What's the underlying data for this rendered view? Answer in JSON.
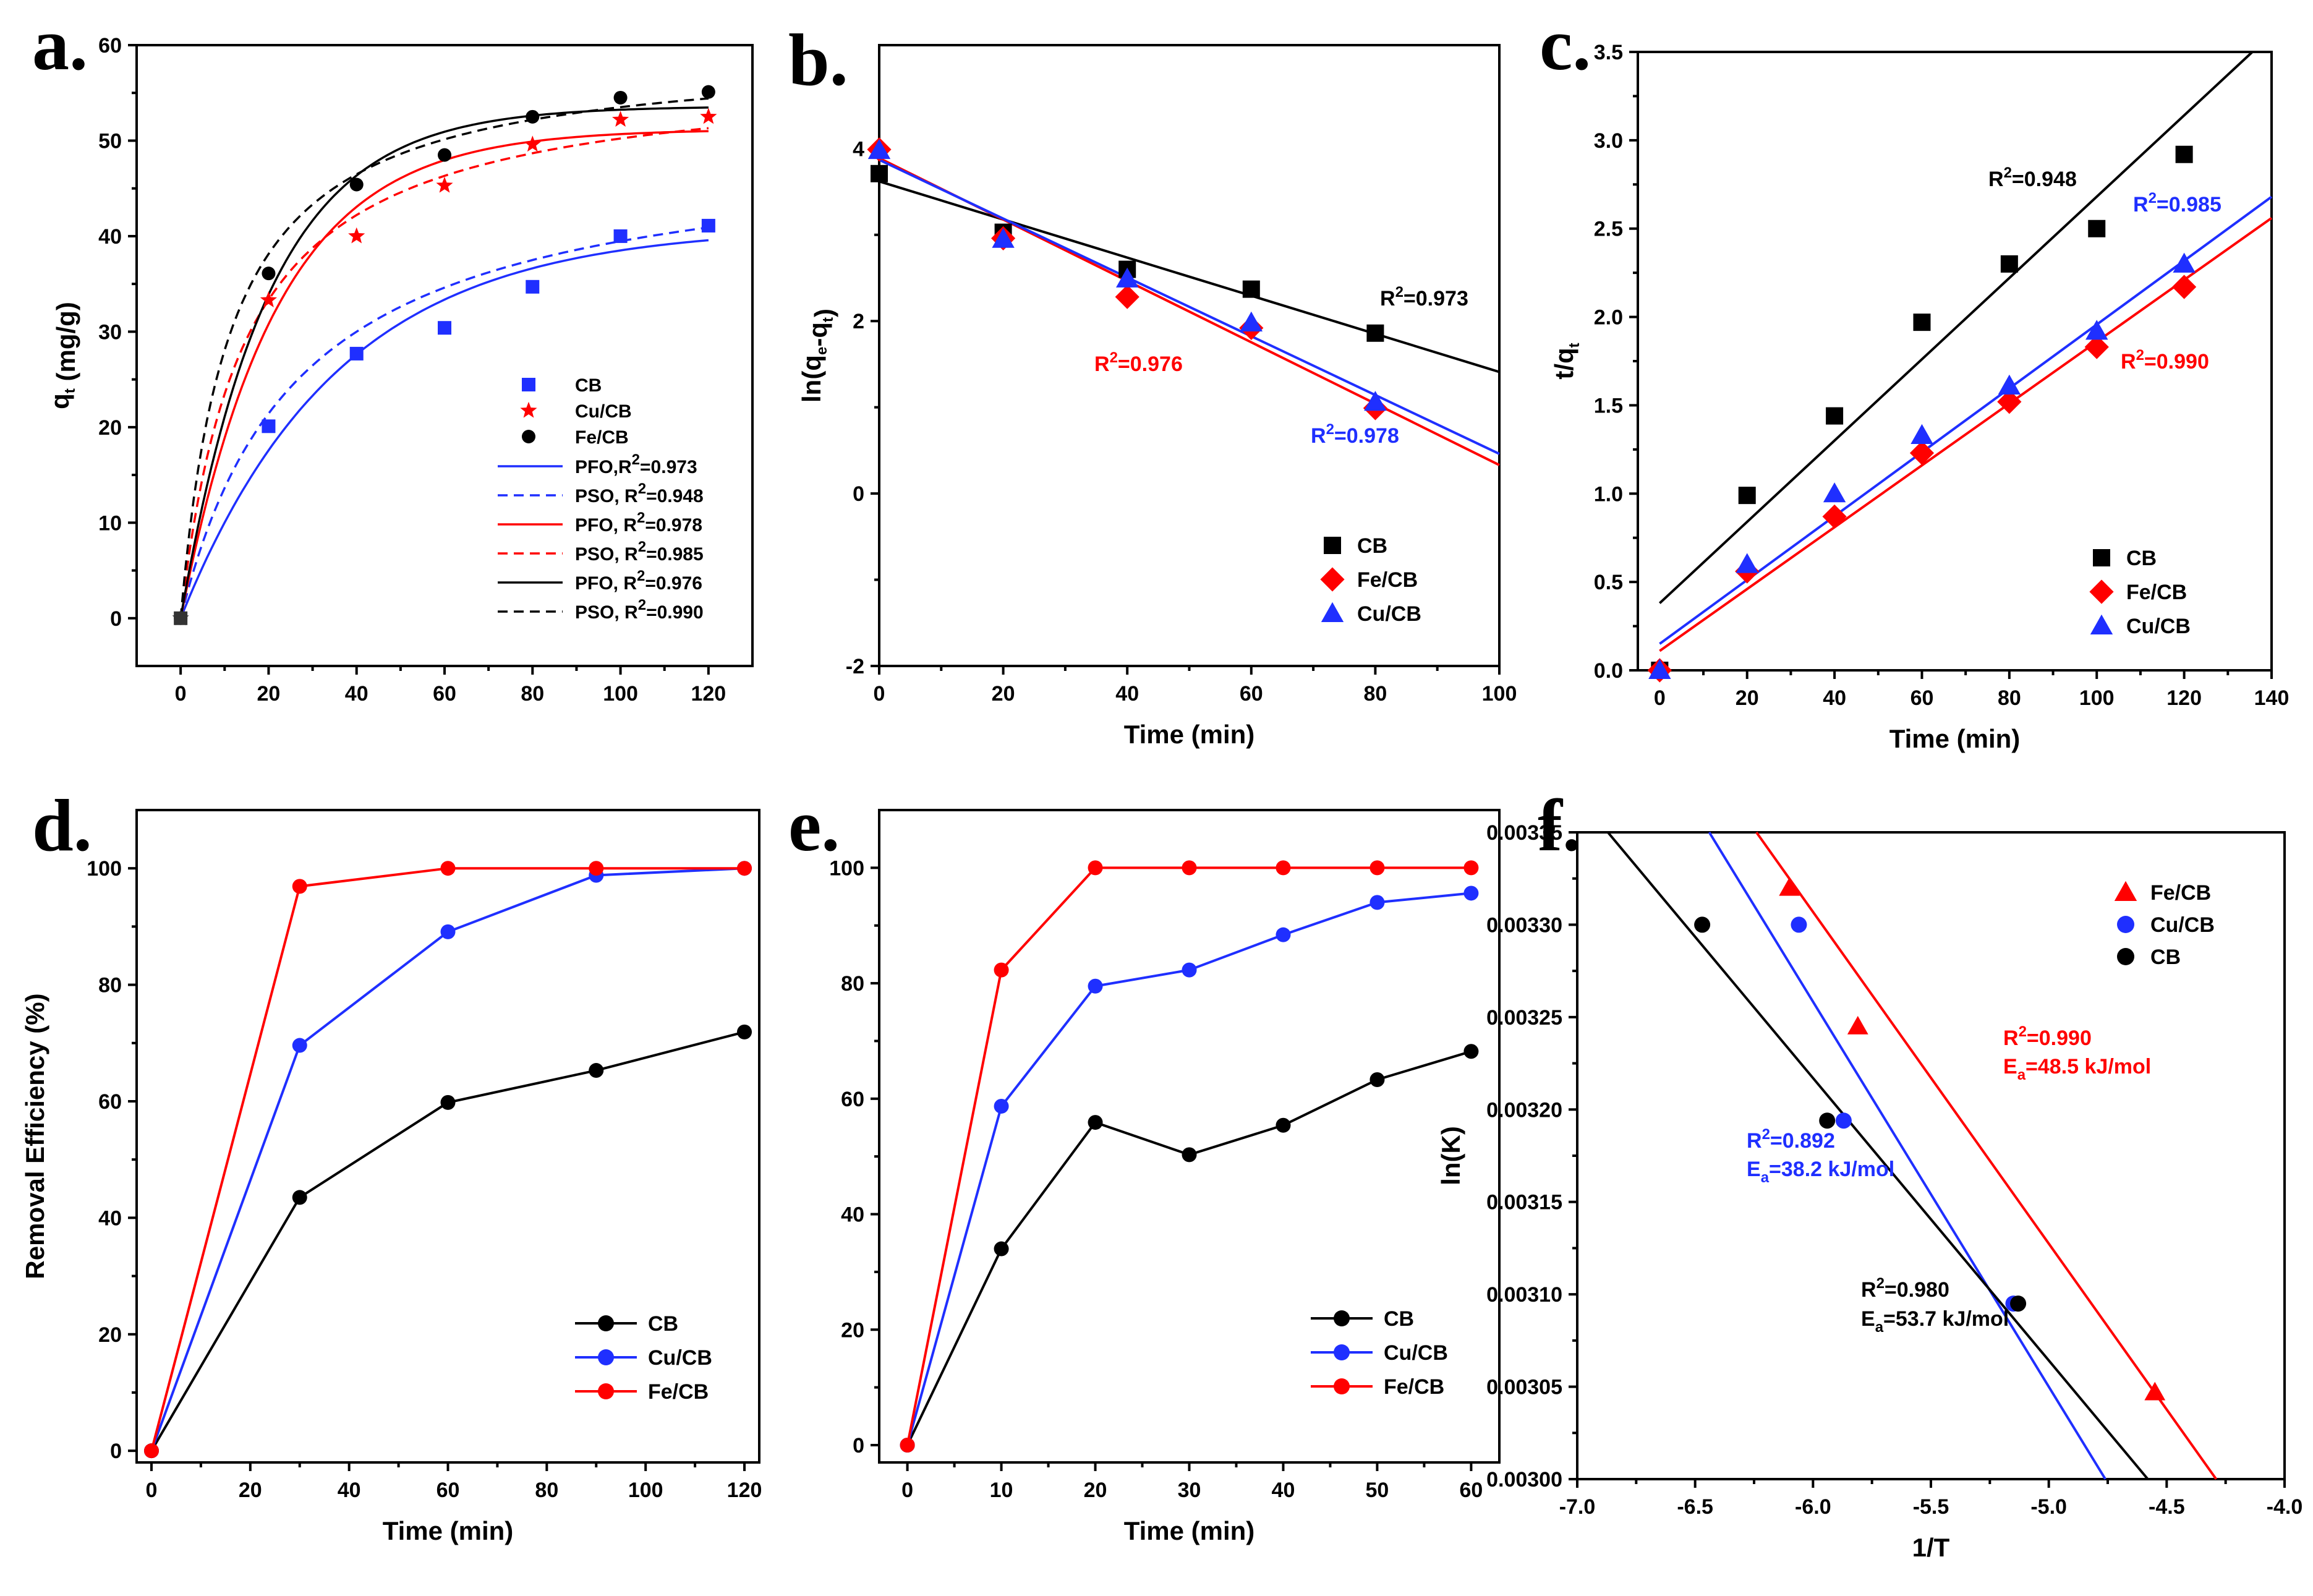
{
  "chart_data": [
    {
      "panel": "a.",
      "type": "scatter",
      "xlabel": "",
      "ylabel": "q_t (mg/g)",
      "xlim": [
        -10,
        130
      ],
      "ylim": [
        -5,
        60
      ],
      "xticks": [
        0,
        20,
        40,
        60,
        80,
        100,
        120
      ],
      "yticks": [
        0,
        10,
        20,
        30,
        40,
        50,
        60
      ],
      "series": [
        {
          "name": "CB",
          "color": "#1f2fff",
          "marker": "square",
          "x": [
            0,
            20,
            40,
            60,
            80,
            100,
            120
          ],
          "y": [
            0,
            20.1,
            27.7,
            30.4,
            34.7,
            40.0,
            41.1
          ]
        },
        {
          "name": "Cu/CB",
          "color": "#ff0000",
          "marker": "star",
          "x": [
            0,
            20,
            40,
            60,
            80,
            100,
            120
          ],
          "y": [
            0,
            33.3,
            40.0,
            45.3,
            49.6,
            52.2,
            52.5
          ]
        },
        {
          "name": "Fe/CB",
          "color": "#000000",
          "marker": "circle",
          "x": [
            0,
            20,
            40,
            60,
            80,
            100,
            120
          ],
          "y": [
            0,
            36.1,
            45.4,
            48.5,
            52.5,
            54.5,
            55.1
          ]
        }
      ],
      "fits": [
        {
          "label": "PFO,R²=0.973",
          "color": "#1f2fff",
          "dash": false,
          "model": "pfo",
          "qe": 41.0,
          "k": 0.028
        },
        {
          "label": "PSO, R²=0.948",
          "color": "#1f2fff",
          "dash": true,
          "model": "pso",
          "qe": 50.0,
          "k": 0.00075
        },
        {
          "label": "PFO, R²=0.978",
          "color": "#ff0000",
          "dash": false,
          "model": "pfo",
          "qe": 51.2,
          "k": 0.046
        },
        {
          "label": "PSO, R²=0.985",
          "color": "#ff0000",
          "dash": true,
          "model": "pso",
          "qe": 57.5,
          "k": 0.0012
        },
        {
          "label": "PFO, R²=0.976",
          "color": "#000000",
          "dash": false,
          "model": "pfo",
          "qe": 53.6,
          "k": 0.05
        },
        {
          "label": "PSO, R²=0.990",
          "color": "#000000",
          "dash": true,
          "model": "pso",
          "qe": 59.5,
          "k": 0.0015
        }
      ]
    },
    {
      "panel": "b.",
      "type": "scatter",
      "xlabel": "Time (min)",
      "ylabel": "ln(q_e-q_t)",
      "xlim": [
        0,
        100
      ],
      "ylim": [
        -2,
        5.2
      ],
      "xticks": [
        0,
        20,
        40,
        60,
        80,
        100
      ],
      "yticks": [
        -2,
        0,
        2,
        4
      ],
      "series": [
        {
          "name": "CB",
          "color": "#000000",
          "marker": "square",
          "x": [
            0,
            20,
            40,
            60,
            80
          ],
          "y": [
            3.71,
            3.03,
            2.6,
            2.37,
            1.86
          ]
        },
        {
          "name": "Fe/CB",
          "color": "#ff0000",
          "marker": "diamond",
          "x": [
            0,
            20,
            40,
            60,
            80
          ],
          "y": [
            3.99,
            2.96,
            2.28,
            1.92,
            0.99
          ]
        },
        {
          "name": "Cu/CB",
          "color": "#1f2fff",
          "marker": "triangle",
          "x": [
            0,
            20,
            40,
            60,
            80
          ],
          "y": [
            3.98,
            2.95,
            2.49,
            1.98,
            1.06
          ]
        }
      ],
      "fits": [
        {
          "color": "#000000",
          "x": [
            0,
            100
          ],
          "y": [
            3.62,
            1.41
          ]
        },
        {
          "color": "#ff0000",
          "x": [
            0,
            100
          ],
          "y": [
            3.89,
            0.33
          ]
        },
        {
          "color": "#1f2fff",
          "x": [
            0,
            100
          ],
          "y": [
            3.87,
            0.46
          ]
        }
      ]
    },
    {
      "panel": "c.",
      "type": "scatter",
      "xlabel": "Time (min)",
      "ylabel": "t/q_t",
      "xlim": [
        -5,
        140
      ],
      "ylim": [
        0,
        3.5
      ],
      "xticks": [
        0,
        20,
        40,
        60,
        80,
        100,
        120,
        140
      ],
      "yticks": [
        0.0,
        0.5,
        1.0,
        1.5,
        2.0,
        2.5,
        3.0,
        3.5
      ],
      "series": [
        {
          "name": "CB",
          "color": "#000000",
          "marker": "square",
          "x": [
            0,
            20,
            40,
            60,
            80,
            100,
            120
          ],
          "y": [
            0,
            0.99,
            1.44,
            1.97,
            2.3,
            2.5,
            2.92
          ]
        },
        {
          "name": "Fe/CB",
          "color": "#ff0000",
          "marker": "diamond",
          "x": [
            0,
            20,
            40,
            60,
            80,
            100,
            120
          ],
          "y": [
            0,
            0.56,
            0.87,
            1.23,
            1.52,
            1.83,
            2.17
          ]
        },
        {
          "name": "Cu/CB",
          "color": "#1f2fff",
          "marker": "triangle",
          "x": [
            0,
            20,
            40,
            60,
            80,
            100,
            120
          ],
          "y": [
            0,
            0.6,
            1.0,
            1.33,
            1.61,
            1.92,
            2.3
          ]
        }
      ],
      "fits": [
        {
          "color": "#000000",
          "x": [
            0,
            135.6
          ],
          "y": [
            0.38,
            3.5
          ]
        },
        {
          "color": "#ff0000",
          "x": [
            0,
            140
          ],
          "y": [
            0.11,
            2.56
          ]
        },
        {
          "color": "#1f2fff",
          "x": [
            0,
            140
          ],
          "y": [
            0.15,
            2.68
          ]
        }
      ]
    },
    {
      "panel": "d.",
      "type": "line",
      "xlabel": "Time (min)",
      "ylabel": "Removal Efficiency (%)",
      "xlim": [
        -3,
        123
      ],
      "ylim": [
        -2,
        110
      ],
      "xticks": [
        0,
        20,
        40,
        60,
        80,
        100,
        120
      ],
      "yticks": [
        0,
        20,
        40,
        60,
        80,
        100
      ],
      "series": [
        {
          "name": "CB",
          "color": "#000000",
          "marker": "circle",
          "x": [
            0,
            30,
            60,
            90,
            120
          ],
          "y": [
            0,
            43.5,
            59.8,
            65.3,
            71.9
          ]
        },
        {
          "name": "Cu/CB",
          "color": "#1f2fff",
          "marker": "circle",
          "x": [
            0,
            30,
            60,
            90,
            120
          ],
          "y": [
            0,
            69.6,
            89.1,
            98.8,
            100
          ]
        },
        {
          "name": "Fe/CB",
          "color": "#ff0000",
          "marker": "circle",
          "x": [
            0,
            30,
            60,
            90,
            120
          ],
          "y": [
            0,
            96.9,
            100,
            100,
            100
          ]
        }
      ]
    },
    {
      "panel": "e.",
      "type": "line",
      "xlabel": "Time (min)",
      "ylabel": "",
      "xlim": [
        -3,
        63
      ],
      "ylim": [
        -3,
        110
      ],
      "xticks": [
        0,
        10,
        20,
        30,
        40,
        50,
        60
      ],
      "yticks": [
        0,
        20,
        40,
        60,
        80,
        100
      ],
      "series": [
        {
          "name": "CB",
          "color": "#000000",
          "marker": "circle",
          "x": [
            0,
            10,
            20,
            30,
            40,
            50,
            60
          ],
          "y": [
            0,
            34.0,
            55.9,
            50.3,
            55.4,
            63.3,
            68.2
          ]
        },
        {
          "name": "Cu/CB",
          "color": "#1f2fff",
          "marker": "circle",
          "x": [
            0,
            10,
            20,
            30,
            40,
            50,
            60
          ],
          "y": [
            0,
            58.7,
            79.5,
            82.3,
            88.4,
            94.0,
            95.6
          ]
        },
        {
          "name": "Fe/CB",
          "color": "#ff0000",
          "marker": "circle",
          "x": [
            0,
            10,
            20,
            30,
            40,
            50,
            60
          ],
          "y": [
            0,
            82.3,
            100,
            100,
            100,
            100,
            100
          ]
        }
      ]
    },
    {
      "panel": "f.",
      "type": "scatter",
      "xlabel": "1/T",
      "ylabel": "ln(K)",
      "xlim": [
        -7.0,
        -4.0
      ],
      "ylim": [
        0.003,
        0.00335
      ],
      "xticks": [
        -7.0,
        -6.5,
        -6.0,
        -5.5,
        -5.0,
        -4.5,
        -4.0
      ],
      "xtick_labels": [
        "-7.0",
        "-6.5",
        "-6.0",
        "-5.5",
        "-5.0",
        "-4.5",
        "-4.0"
      ],
      "yticks": [
        0.003,
        0.00305,
        0.0031,
        0.00315,
        0.0032,
        0.00325,
        0.0033,
        0.00335
      ],
      "ytick_labels": [
        "0.00300",
        "0.00305",
        "0.00310",
        "0.00315",
        "0.00320",
        "0.00325",
        "0.00330",
        "0.00335"
      ],
      "series": [
        {
          "name": "Fe/CB",
          "color": "#ff0000",
          "marker": "triangle",
          "x": [
            -6.1,
            -5.81,
            -4.55
          ],
          "y": [
            0.00332,
            0.003245,
            0.003047
          ]
        },
        {
          "name": "Cu/CB",
          "color": "#1f2fff",
          "marker": "circle",
          "x": [
            -6.06,
            -5.87,
            -5.15
          ],
          "y": [
            0.0033,
            0.003194,
            0.003095
          ]
        },
        {
          "name": "CB",
          "color": "#000000",
          "marker": "circle",
          "x": [
            -6.47,
            -5.94,
            -5.13
          ],
          "y": [
            0.0033,
            0.003194,
            0.003095
          ]
        }
      ],
      "fits": [
        {
          "color": "#ff0000",
          "x": [
            -6.24,
            -4.29
          ],
          "y": [
            0.00335,
            0.003
          ]
        },
        {
          "color": "#1f2fff",
          "x": [
            -6.44,
            -4.76
          ],
          "y": [
            0.00335,
            0.003
          ]
        },
        {
          "color": "#000000",
          "x": [
            -6.87,
            -4.58
          ],
          "y": [
            0.00335,
            0.003
          ]
        }
      ]
    }
  ],
  "annotations": {
    "b_cb": "R²=0.973",
    "b_fe": "R²=0.976",
    "b_cu": "R²=0.978",
    "c_cb": "R²=0.948",
    "c_cu": "R²=0.985",
    "c_fe": "R²=0.990",
    "f_fe_r2": "R²=0.990",
    "f_fe_ea": "Ea=48.5 kJ/mol",
    "f_cu_r2": "R²=0.892",
    "f_cu_ea": "Ea=38.2 kJ/mol",
    "f_cb_r2": "R²=0.980",
    "f_cb_ea": "Ea=53.7 kJ/mol"
  }
}
